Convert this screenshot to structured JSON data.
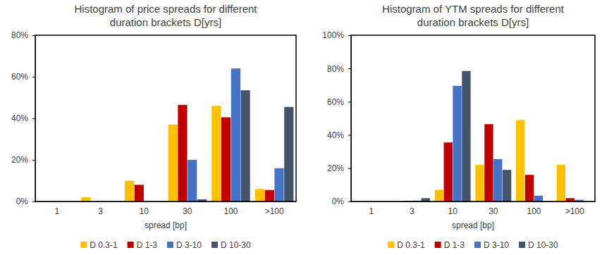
{
  "chart_data": [
    {
      "type": "bar",
      "title": [
        "Histogram of price spreads for different",
        "duration brackets D[yrs]"
      ],
      "xlabel": "spread [bp]",
      "categories": [
        "1",
        "3",
        "10",
        "30",
        "100",
        ">100"
      ],
      "series": [
        {
          "name": "D 0.3-1",
          "color": "#FFC000",
          "values": [
            0,
            2,
            10,
            37,
            46,
            6
          ]
        },
        {
          "name": "D 1-3",
          "color": "#C00000",
          "values": [
            0,
            0,
            8,
            46.5,
            40.5,
            5.5
          ]
        },
        {
          "name": "D 3-10",
          "color": "#4472C4",
          "values": [
            0,
            0,
            0,
            20,
            64,
            16
          ]
        },
        {
          "name": "D 10-30",
          "color": "#44546A",
          "values": [
            0,
            0,
            0,
            1,
            53.5,
            45.5
          ]
        }
      ],
      "ylim": [
        0,
        80
      ],
      "yticks": [
        {
          "value": 0,
          "label": "0%"
        },
        {
          "value": 20,
          "label": "20%"
        },
        {
          "value": 40,
          "label": "40%"
        },
        {
          "value": 60,
          "label": "60%"
        },
        {
          "value": 80,
          "label": "80%"
        }
      ],
      "grid": false,
      "legend": "bottom"
    },
    {
      "type": "bar",
      "title": [
        "Histogram of YTM spreads for different",
        "duration brackets D[yrs]"
      ],
      "xlabel": "spread [bp]",
      "categories": [
        "1",
        "3",
        "10",
        "30",
        "100",
        ">100"
      ],
      "series": [
        {
          "name": "D 0.3-1",
          "color": "#FFC000",
          "values": [
            0,
            0,
            7,
            22,
            49,
            22
          ]
        },
        {
          "name": "D 1-3",
          "color": "#C00000",
          "values": [
            0,
            0.3,
            35.5,
            46.5,
            16,
            2
          ]
        },
        {
          "name": "D 3-10",
          "color": "#4472C4",
          "values": [
            0,
            0.5,
            69.5,
            25.5,
            3.5,
            1
          ]
        },
        {
          "name": "D 10-30",
          "color": "#44546A",
          "values": [
            0,
            2,
            78.5,
            19,
            0,
            0
          ]
        }
      ],
      "ylim": [
        0,
        100
      ],
      "yticks": [
        {
          "value": 0,
          "label": "0%"
        },
        {
          "value": 20,
          "label": "20%"
        },
        {
          "value": 40,
          "label": "40%"
        },
        {
          "value": 60,
          "label": "60%"
        },
        {
          "value": 80,
          "label": "80%"
        },
        {
          "value": 100,
          "label": "100%"
        }
      ],
      "grid": false,
      "legend": "bottom"
    }
  ]
}
